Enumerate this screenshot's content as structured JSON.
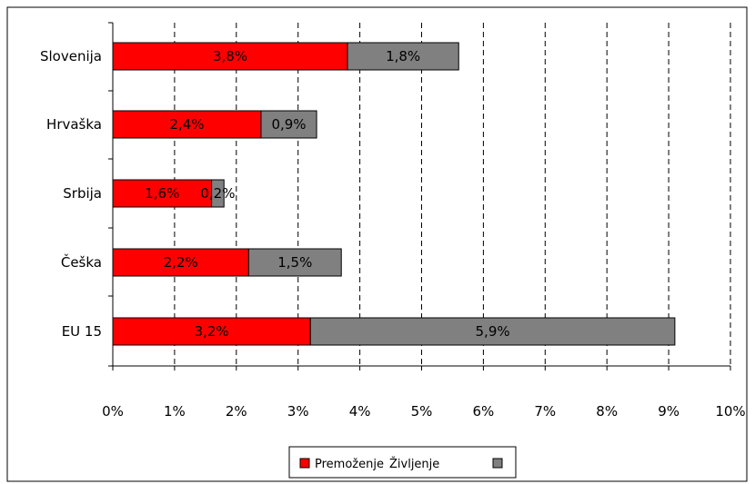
{
  "chart_data": {
    "type": "bar",
    "orientation": "horizontal",
    "stacked": true,
    "categories": [
      "Slovenija",
      "Hrvaška",
      "Srbija",
      "Češka",
      "EU 15"
    ],
    "series": [
      {
        "name": "Premoženje",
        "color": "#ff0000",
        "values": [
          3.8,
          2.4,
          1.6,
          2.2,
          3.2
        ],
        "labels": [
          "3,8%",
          "2,4%",
          "1,6%",
          "2,2%",
          "3,2%"
        ]
      },
      {
        "name": "Življenje",
        "color": "#808080",
        "values": [
          1.8,
          0.9,
          0.2,
          1.5,
          5.9
        ],
        "labels": [
          "1,8%",
          "0,9%",
          "0,2%",
          "1,5%",
          "5,9%"
        ]
      }
    ],
    "xlim": [
      0,
      10
    ],
    "x_ticks": [
      0,
      1,
      2,
      3,
      4,
      5,
      6,
      7,
      8,
      9,
      10
    ],
    "x_tick_labels": [
      "0%",
      "1%",
      "2%",
      "3%",
      "4%",
      "5%",
      "6%",
      "7%",
      "8%",
      "9%",
      "10%"
    ],
    "grid": "vertical dashed",
    "legend_position": "bottom"
  }
}
